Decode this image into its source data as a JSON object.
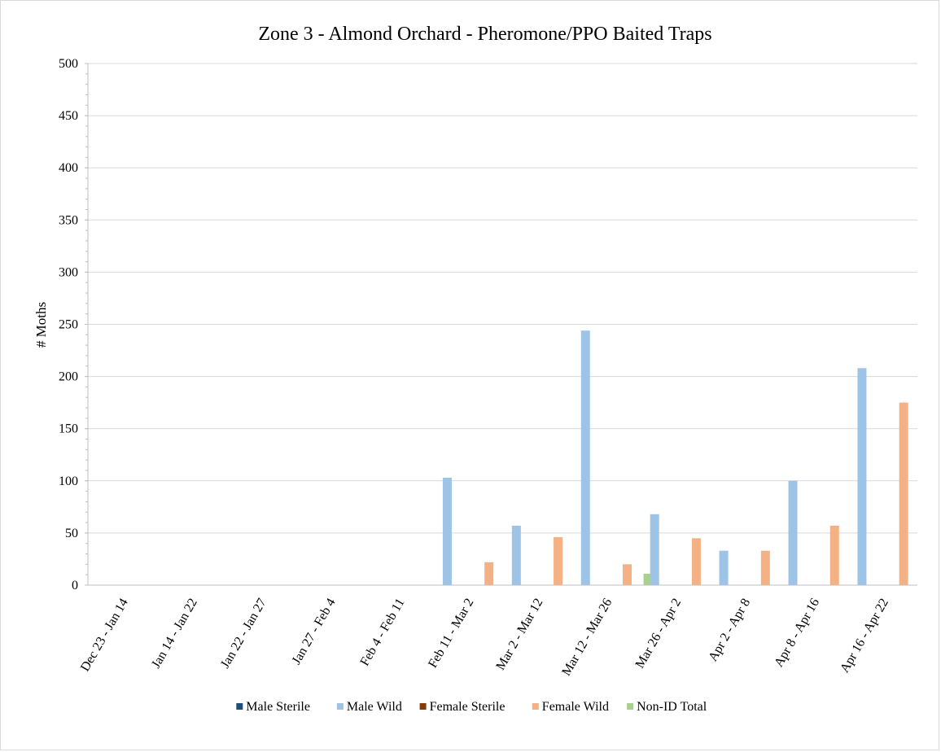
{
  "chart_data": {
    "type": "bar",
    "title": "Zone 3 - Almond Orchard - Pheromone/PPO Baited Traps",
    "xlabel": "",
    "ylabel": "# Moths",
    "ylim": [
      0,
      500
    ],
    "ytick_step": 50,
    "grid": true,
    "legend_position": "bottom",
    "categories": [
      "Dec 23 - Jan 14",
      "Jan 14 - Jan 22",
      "Jan 22 - Jan 27",
      "Jan 27 - Feb 4",
      "Feb 4 - Feb 11",
      "Feb 11 - Mar 2",
      "Mar 2 - Mar 12",
      "Mar 12 - Mar 26",
      "Mar 26 - Apr 2",
      "Apr 2 - Apr 8",
      "Apr 8 - Apr 16",
      "Apr 16 - Apr 22"
    ],
    "series": [
      {
        "name": "Male Sterile",
        "color": "#1f4e79",
        "values": [
          0,
          0,
          0,
          0,
          0,
          0,
          0,
          0,
          0,
          0,
          0,
          0
        ]
      },
      {
        "name": "Male Wild",
        "color": "#9dc3e6",
        "values": [
          0,
          0,
          0,
          0,
          0,
          103,
          57,
          244,
          68,
          33,
          100,
          208
        ]
      },
      {
        "name": "Female Sterile",
        "color": "#843c0c",
        "values": [
          0,
          0,
          0,
          0,
          0,
          0,
          0,
          0,
          0,
          0,
          0,
          0
        ]
      },
      {
        "name": "Female Wild",
        "color": "#f4b183",
        "values": [
          0,
          0,
          0,
          0,
          0,
          22,
          46,
          20,
          45,
          33,
          57,
          175
        ]
      },
      {
        "name": "Non-ID Total",
        "color": "#a9d18e",
        "values": [
          0,
          0,
          0,
          0,
          0,
          0,
          0,
          11,
          0,
          0,
          0,
          0
        ]
      }
    ]
  }
}
